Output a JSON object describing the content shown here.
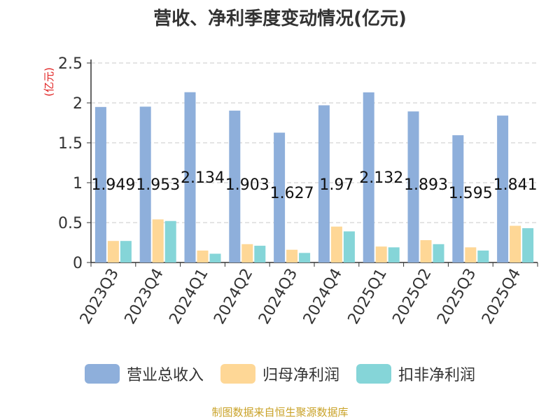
{
  "chart_data": {
    "type": "bar",
    "title": "营收、净利季度变动情况(亿元)",
    "ylabel": "(亿元)",
    "xlabel": "",
    "ylim": [
      0,
      2.5
    ],
    "yticks": [
      "0",
      "0.5",
      "1",
      "1.5",
      "2",
      "2.5"
    ],
    "ytick_values": [
      0,
      0.5,
      1,
      1.5,
      2,
      2.5
    ],
    "grid": true,
    "legend_position": "bottom",
    "categories": [
      "2023Q3",
      "2023Q4",
      "2024Q1",
      "2024Q2",
      "2024Q3",
      "2024Q4",
      "2025Q1",
      "2025Q2",
      "2025Q3",
      "2025Q4"
    ],
    "series": [
      {
        "name": "营业总收入",
        "color": "#8eafdb",
        "values": [
          1.949,
          1.953,
          2.134,
          1.903,
          1.627,
          1.97,
          2.132,
          1.893,
          1.595,
          1.841
        ]
      },
      {
        "name": "归母净利润",
        "color": "#fed796",
        "values": [
          0.27,
          0.54,
          0.15,
          0.23,
          0.16,
          0.45,
          0.2,
          0.28,
          0.19,
          0.46
        ]
      },
      {
        "name": "扣非净利润",
        "color": "#85d5d8",
        "values": [
          0.27,
          0.52,
          0.11,
          0.21,
          0.12,
          0.39,
          0.19,
          0.23,
          0.15,
          0.43
        ]
      }
    ],
    "data_labels": [
      "1.949",
      "1.953",
      "2.134",
      "1.903",
      "1.627",
      "1.97",
      "2.132",
      "1.893",
      "1.595",
      "1.841"
    ]
  },
  "source": "制图数据来自恒生聚源数据库"
}
